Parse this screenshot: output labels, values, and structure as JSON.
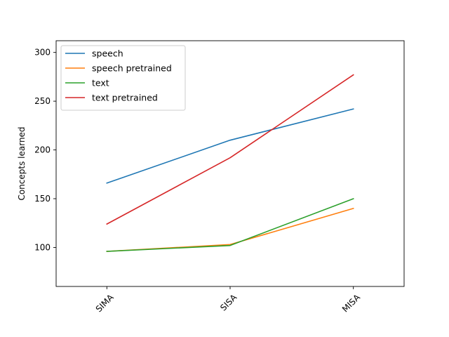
{
  "chart_data": {
    "type": "line",
    "title": "",
    "xlabel": "",
    "ylabel": "Concepts learned",
    "categories": [
      "SIMA",
      "SISA",
      "MISA"
    ],
    "ylim": [
      60,
      312
    ],
    "yticks": [
      100,
      150,
      200,
      250,
      300
    ],
    "grid": false,
    "legend_position": "upper-left",
    "series": [
      {
        "name": "speech",
        "color": "#1f77b4",
        "values": [
          166,
          210,
          242
        ]
      },
      {
        "name": "speech pretrained",
        "color": "#ff7f0e",
        "values": [
          96,
          103,
          140
        ]
      },
      {
        "name": "text",
        "color": "#2ca02c",
        "values": [
          96,
          102,
          150
        ]
      },
      {
        "name": "text pretrained",
        "color": "#d62728",
        "values": [
          124,
          192,
          277
        ]
      }
    ]
  }
}
